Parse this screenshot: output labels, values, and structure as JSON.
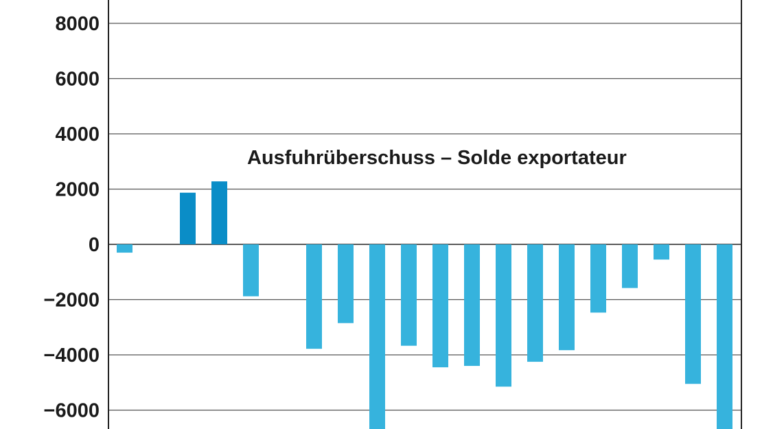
{
  "chart_data": {
    "type": "bar",
    "title": "",
    "xlabel": "",
    "ylabel": "",
    "ylim": [
      -6700,
      8800
    ],
    "yticks": [
      8000,
      6000,
      4000,
      2000,
      0,
      -2000,
      -4000,
      -6000
    ],
    "ytick_labels": [
      "8000",
      "6000",
      "4000",
      "2000",
      "0",
      "−2000",
      "−4000",
      "−6000"
    ],
    "grid": true,
    "annotation": "Ausfuhrüberschuss – Solde exportateur",
    "colors": {
      "positive": "#0a8dc7",
      "negative": "#36b3dd",
      "grid": "#555555",
      "axis": "#222222"
    },
    "values": [
      -300,
      null,
      1870,
      2280,
      -1880,
      null,
      -3780,
      -2850,
      -6700,
      -3670,
      -4450,
      -4400,
      -5150,
      -4250,
      -3830,
      -2470,
      -1580,
      -550,
      -5050,
      -6700
    ]
  }
}
